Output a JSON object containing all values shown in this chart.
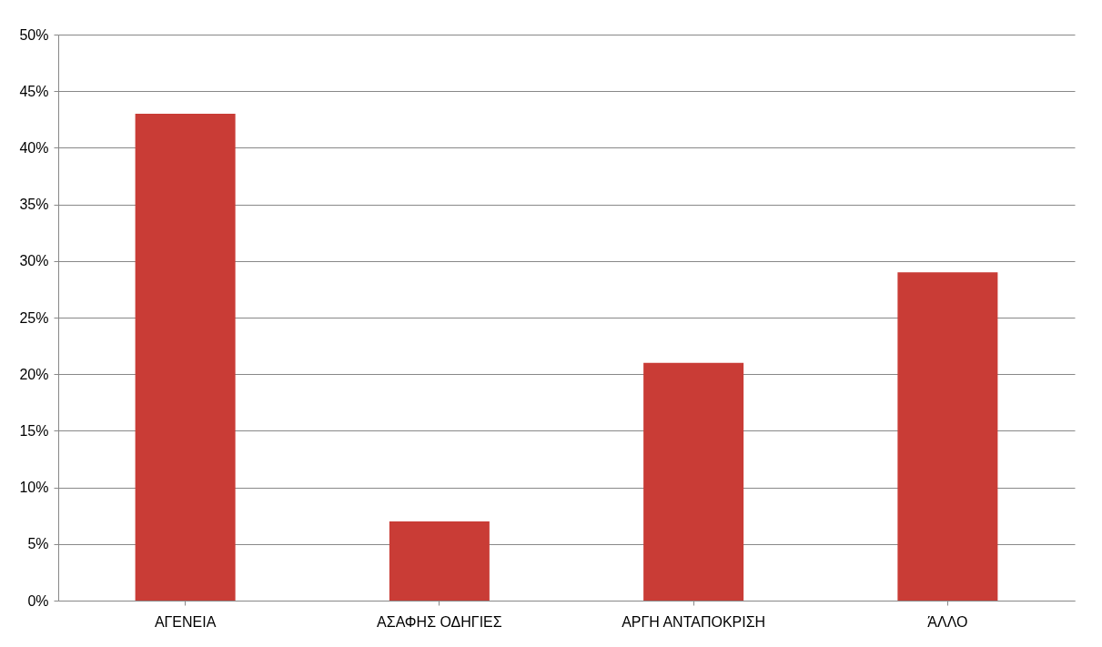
{
  "chart_data": {
    "type": "bar",
    "categories": [
      "ΑΓΕΝΕΙΑ",
      "ΑΣΑΦΗΣ ΟΔΗΓΙΕΣ",
      "ΑΡΓΗ ΑΝΤΑΠΟΚΡΙΣΗ",
      "ΆΛΛΟ"
    ],
    "values": [
      43,
      7,
      21,
      29
    ],
    "color": "#c93c36",
    "ylim": [
      0,
      50
    ],
    "yticks": [
      {
        "value": 0,
        "label": "0%"
      },
      {
        "value": 5,
        "label": "5%"
      },
      {
        "value": 10,
        "label": "10%"
      },
      {
        "value": 15,
        "label": "15%"
      },
      {
        "value": 20,
        "label": "20%"
      },
      {
        "value": 25,
        "label": "25%"
      },
      {
        "value": 30,
        "label": "30%"
      },
      {
        "value": 35,
        "label": "35%"
      },
      {
        "value": 40,
        "label": "40%"
      },
      {
        "value": 45,
        "label": "45%"
      },
      {
        "value": 50,
        "label": "50%"
      }
    ],
    "grid": "y"
  }
}
